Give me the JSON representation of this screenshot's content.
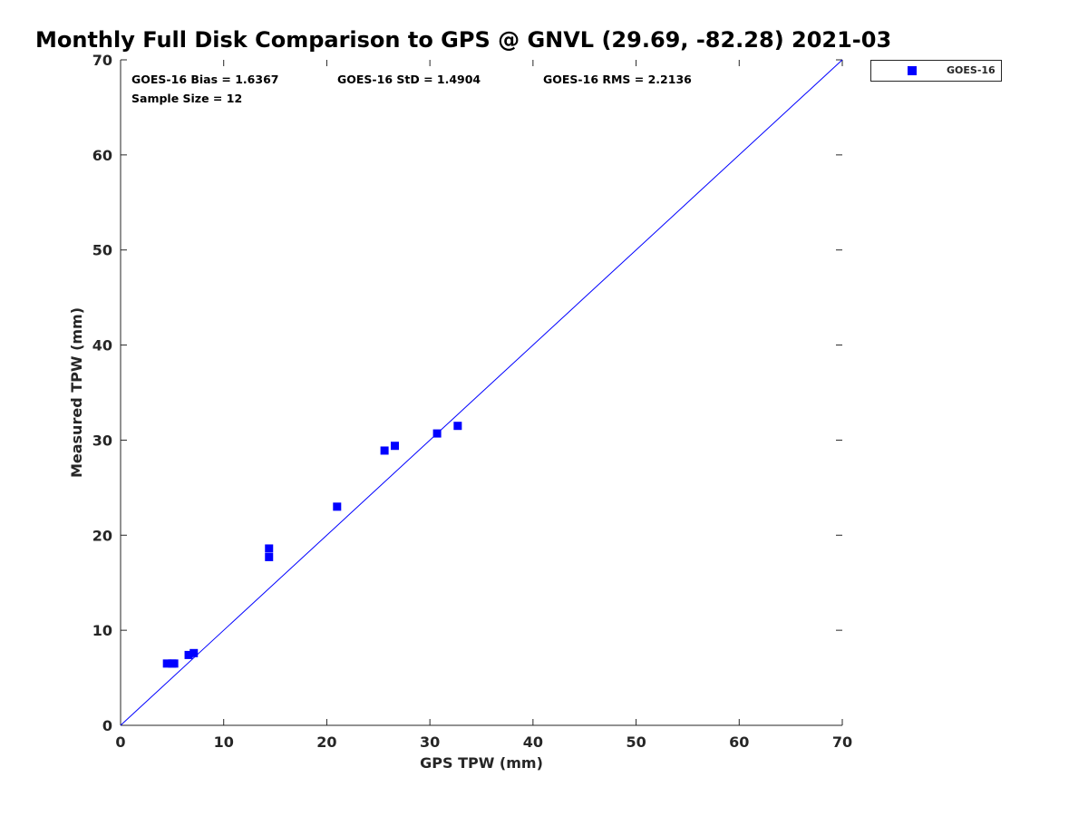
{
  "chart_data": {
    "type": "scatter",
    "title": "Monthly Full Disk Comparison to GPS @ GNVL (29.69, -82.28) 2021-03",
    "xlabel": "GPS TPW (mm)",
    "ylabel": "Measured TPW (mm)",
    "xlim": [
      0,
      70
    ],
    "ylim": [
      0,
      70
    ],
    "xticks": [
      "0",
      "10",
      "20",
      "30",
      "40",
      "50",
      "60",
      "70"
    ],
    "yticks": [
      "0",
      "10",
      "20",
      "30",
      "40",
      "50",
      "60",
      "70"
    ],
    "grid": false,
    "legend_position": "top-right, outside plot",
    "reference_line": {
      "x": [
        0,
        70
      ],
      "y": [
        0,
        70
      ],
      "color": "#0000ff"
    },
    "series": [
      {
        "name": "GOES-16",
        "color": "#0000ff",
        "marker": "square",
        "points": [
          {
            "x": 4.5,
            "y": 6.5
          },
          {
            "x": 5.0,
            "y": 6.5
          },
          {
            "x": 5.2,
            "y": 6.5
          },
          {
            "x": 6.6,
            "y": 7.4
          },
          {
            "x": 7.1,
            "y": 7.6
          },
          {
            "x": 14.4,
            "y": 17.7
          },
          {
            "x": 14.4,
            "y": 18.6
          },
          {
            "x": 21.0,
            "y": 23.0
          },
          {
            "x": 25.6,
            "y": 28.9
          },
          {
            "x": 26.6,
            "y": 29.4
          },
          {
            "x": 30.7,
            "y": 30.7
          },
          {
            "x": 32.7,
            "y": 31.5
          }
        ]
      }
    ]
  },
  "stats": {
    "bias": "GOES-16 Bias = 1.6367",
    "std": "GOES-16 StD = 1.4904",
    "rms": "GOES-16 RMS = 2.2136",
    "sample_size": "Sample Size = 12"
  }
}
